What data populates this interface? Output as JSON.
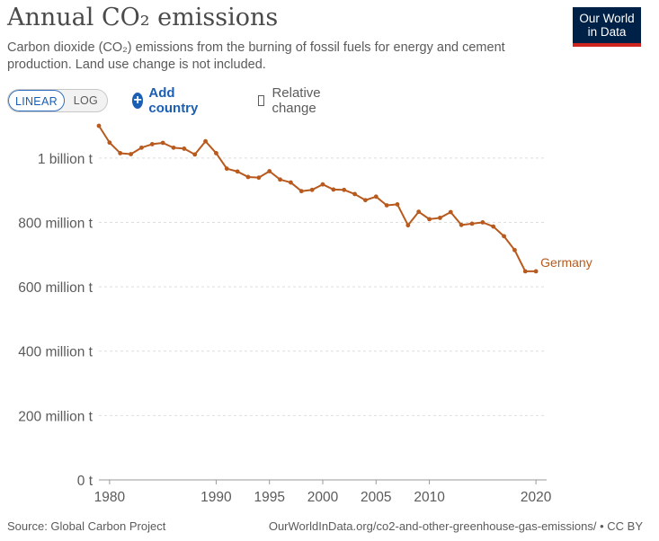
{
  "header": {
    "title": "Annual CO₂ emissions",
    "subtitle": "Carbon dioxide (CO₂) emissions from the burning of fossil fuels for energy and cement production. Land use change is not included."
  },
  "logo": {
    "line1": "Our World",
    "line2": "in Data"
  },
  "controls": {
    "scale_linear": "LINEAR",
    "scale_log": "LOG",
    "add_country": "Add country",
    "relative_change": "Relative change"
  },
  "footer": {
    "source": "Source: Global Carbon Project",
    "url": "OurWorldInData.org/co2-and-other-greenhouse-gas-emissions/ • CC BY"
  },
  "chart_data": {
    "type": "line",
    "title": "Annual CO₂ emissions",
    "xlabel": "",
    "ylabel": "",
    "xlim": [
      1979,
      2021
    ],
    "ylim": [
      0,
      1100000000
    ],
    "x_ticks": [
      1980,
      1990,
      1995,
      2000,
      2005,
      2010,
      2020
    ],
    "y_ticks": [
      {
        "value": 0,
        "label": "0 t"
      },
      {
        "value": 200000000,
        "label": "200 million t"
      },
      {
        "value": 400000000,
        "label": "400 million t"
      },
      {
        "value": 600000000,
        "label": "600 million t"
      },
      {
        "value": 800000000,
        "label": "800 million t"
      },
      {
        "value": 1000000000,
        "label": "1 billion t"
      }
    ],
    "grid": "horizontal-dashed",
    "color": "#b85a1e",
    "series": [
      {
        "name": "Germany",
        "x": [
          1979,
          1980,
          1981,
          1982,
          1983,
          1984,
          1985,
          1986,
          1987,
          1988,
          1989,
          1990,
          1991,
          1992,
          1993,
          1994,
          1995,
          1996,
          1997,
          1998,
          1999,
          2000,
          2001,
          2002,
          2003,
          2004,
          2005,
          2006,
          2007,
          2008,
          2009,
          2010,
          2011,
          2012,
          2013,
          2014,
          2015,
          2016,
          2017,
          2018,
          2019,
          2020
        ],
        "values": [
          1100000000,
          1048000000,
          1015000000,
          1012000000,
          1032000000,
          1043000000,
          1047000000,
          1032000000,
          1029000000,
          1011000000,
          1052000000,
          1015000000,
          967000000,
          958000000,
          941000000,
          939000000,
          959000000,
          933000000,
          924000000,
          897000000,
          901000000,
          918000000,
          902000000,
          901000000,
          888000000,
          869000000,
          880000000,
          853000000,
          856000000,
          791000000,
          833000000,
          810000000,
          814000000,
          832000000,
          792000000,
          796000000,
          800000000,
          787000000,
          757000000,
          714000000,
          648000000,
          648000000
        ]
      }
    ]
  }
}
